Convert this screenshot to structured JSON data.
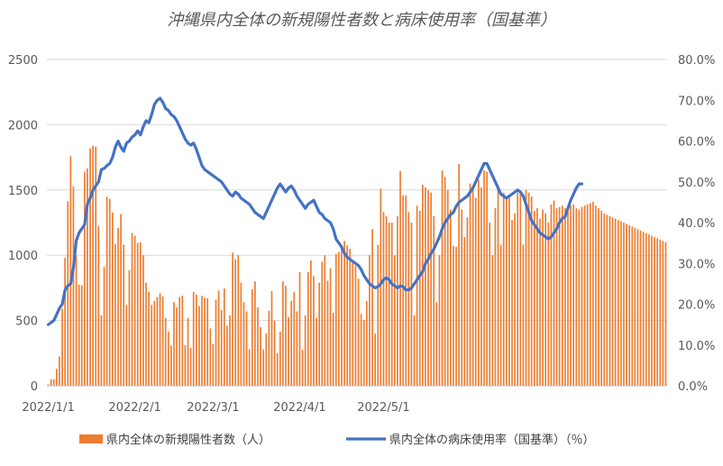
{
  "chart_data": {
    "type": "bar+line",
    "title": "沖縄県内全体の新規陽性者数と病床使用率（国基準）",
    "y_left": {
      "ticks": [
        "0",
        "500",
        "1000",
        "1500",
        "2000",
        "2500"
      ],
      "range": [
        0,
        2500
      ]
    },
    "y_right": {
      "ticks": [
        "0.0%",
        "10.0%",
        "20.0%",
        "30.0%",
        "40.0%",
        "50.0%",
        "60.0%",
        "70.0%",
        "80.0%"
      ],
      "range": [
        0,
        80
      ]
    },
    "x_ticks": [
      "2022/1/1",
      "2022/2/1",
      "2022/3/1",
      "2022/4/1",
      "2022/5/1"
    ],
    "x_start": "2022-01-01",
    "colors": {
      "bars": "#ed7d31",
      "line": "#4472c4"
    },
    "legend": {
      "position": "bottom"
    },
    "series": [
      {
        "name": "県内全体の新規陽性者数（人）",
        "kind": "bar",
        "axis": "left",
        "values": [
          10,
          51,
          50,
          130,
          225,
          590,
          981,
          1414,
          1759,
          1528,
          1000,
          775,
          770,
          1640,
          1665,
          1820,
          1840,
          1832,
          1225,
          540,
          910,
          1448,
          1432,
          1328,
          1088,
          1210,
          1315,
          1080,
          620,
          885,
          1170,
          1150,
          1095,
          1100,
          1000,
          790,
          720,
          620,
          650,
          680,
          710,
          685,
          520,
          415,
          310,
          640,
          600,
          680,
          690,
          310,
          520,
          290,
          720,
          700,
          610,
          690,
          675,
          670,
          440,
          320,
          660,
          730,
          580,
          745,
          460,
          540,
          1020,
          970,
          1000,
          790,
          640,
          570,
          280,
          740,
          800,
          600,
          450,
          280,
          400,
          575,
          725,
          500,
          250,
          415,
          800,
          765,
          525,
          650,
          720,
          570,
          870,
          275,
          540,
          870,
          960,
          840,
          520,
          790,
          950,
          1000,
          805,
          900,
          560,
          1010,
          1025,
          1080,
          1110,
          1075,
          1050,
          940,
          920,
          820,
          550,
          505,
          650,
          1000,
          1200,
          400,
          1080,
          1510,
          1330,
          1300,
          1250,
          1250,
          1000,
          1300,
          1645,
          1460,
          1460,
          1330,
          1250,
          540,
          1380,
          1340,
          1540,
          1520,
          1500,
          1480,
          1300,
          640,
          1000,
          1650,
          1600,
          1500,
          1350,
          1070,
          1065,
          1700,
          1350,
          1140,
          1290,
          1550,
          1520,
          1440,
          1580,
          1520,
          1650,
          1640,
          1250,
          1000,
          1360,
          1540,
          1080,
          1480,
          1435,
          1440,
          1270,
          1320,
          1480,
          1470,
          1080,
          1500,
          1480,
          1450,
          1340,
          1360,
          1280,
          1350,
          1320,
          1250,
          1390,
          1420,
          1360,
          1370,
          1380,
          1360,
          1370,
          1380,
          1390,
          1360,
          1350,
          1370,
          1380,
          1390,
          1400,
          1410,
          1380,
          1360,
          1340,
          1320,
          1310,
          1300,
          1290,
          1280,
          1270,
          1260,
          1250,
          1240,
          1230,
          1220,
          1210,
          1200,
          1190,
          1180,
          1170,
          1160,
          1150,
          1140,
          1130,
          1120,
          1110,
          1100
        ]
      },
      {
        "name": "県内全体の病床使用率（国基準）（％）",
        "kind": "line",
        "axis": "right",
        "values": [
          15.0,
          15.5,
          16.0,
          17.5,
          19.0,
          20.0,
          23.5,
          24.5,
          25.0,
          29.0,
          35.5,
          37.5,
          38.5,
          39.5,
          44.5,
          46.0,
          48.0,
          49.0,
          50.0,
          53.0,
          53.3,
          54.0,
          54.5,
          56.0,
          58.5,
          60.0,
          58.5,
          57.5,
          59.5,
          60.0,
          61.0,
          61.5,
          62.5,
          61.5,
          63.5,
          65.0,
          64.5,
          66.5,
          69.0,
          70.0,
          70.5,
          69.5,
          68.0,
          67.5,
          66.5,
          66.0,
          65.0,
          63.5,
          62.0,
          60.5,
          59.5,
          59.0,
          59.5,
          58.0,
          56.0,
          54.0,
          53.0,
          52.5,
          52.0,
          51.5,
          51.0,
          50.5,
          50.0,
          49.0,
          48.0,
          47.0,
          46.5,
          47.5,
          47.0,
          46.0,
          45.5,
          45.0,
          44.5,
          43.5,
          42.5,
          42.0,
          41.5,
          41.0,
          42.5,
          44.0,
          45.5,
          47.0,
          48.5,
          49.5,
          48.5,
          47.5,
          48.5,
          49.0,
          48.0,
          46.5,
          45.5,
          44.5,
          43.5,
          44.5,
          45.0,
          45.5,
          44.0,
          42.5,
          42.0,
          41.0,
          40.5,
          40.0,
          38.5,
          36.0,
          35.0,
          34.0,
          32.5,
          31.5,
          31.0,
          30.5,
          30.0,
          29.5,
          28.5,
          27.0,
          26.0,
          25.0,
          24.5,
          24.0,
          24.3,
          25.0,
          26.0,
          26.5,
          26.0,
          25.0,
          24.5,
          24.0,
          24.5,
          24.3,
          23.5,
          23.5,
          24.0,
          25.0,
          26.0,
          27.0,
          28.0,
          30.0,
          31.0,
          32.5,
          33.5,
          35.0,
          36.5,
          38.5,
          40.0,
          41.0,
          42.0,
          42.5,
          44.0,
          45.0,
          45.5,
          46.0,
          46.5,
          47.5,
          48.5,
          50.0,
          51.5,
          53.0,
          54.5,
          54.5,
          53.0,
          51.5,
          50.0,
          48.5,
          47.0,
          46.5,
          46.0,
          46.5,
          47.0,
          47.5,
          48.0,
          47.5,
          46.5,
          44.5,
          42.5,
          40.5,
          39.5,
          38.5,
          37.5,
          37.0,
          36.5,
          36.0,
          36.5,
          37.5,
          38.5,
          40.0,
          41.0,
          41.5,
          43.5,
          45.5,
          47.0,
          48.5,
          49.5,
          49.5
        ]
      }
    ]
  }
}
